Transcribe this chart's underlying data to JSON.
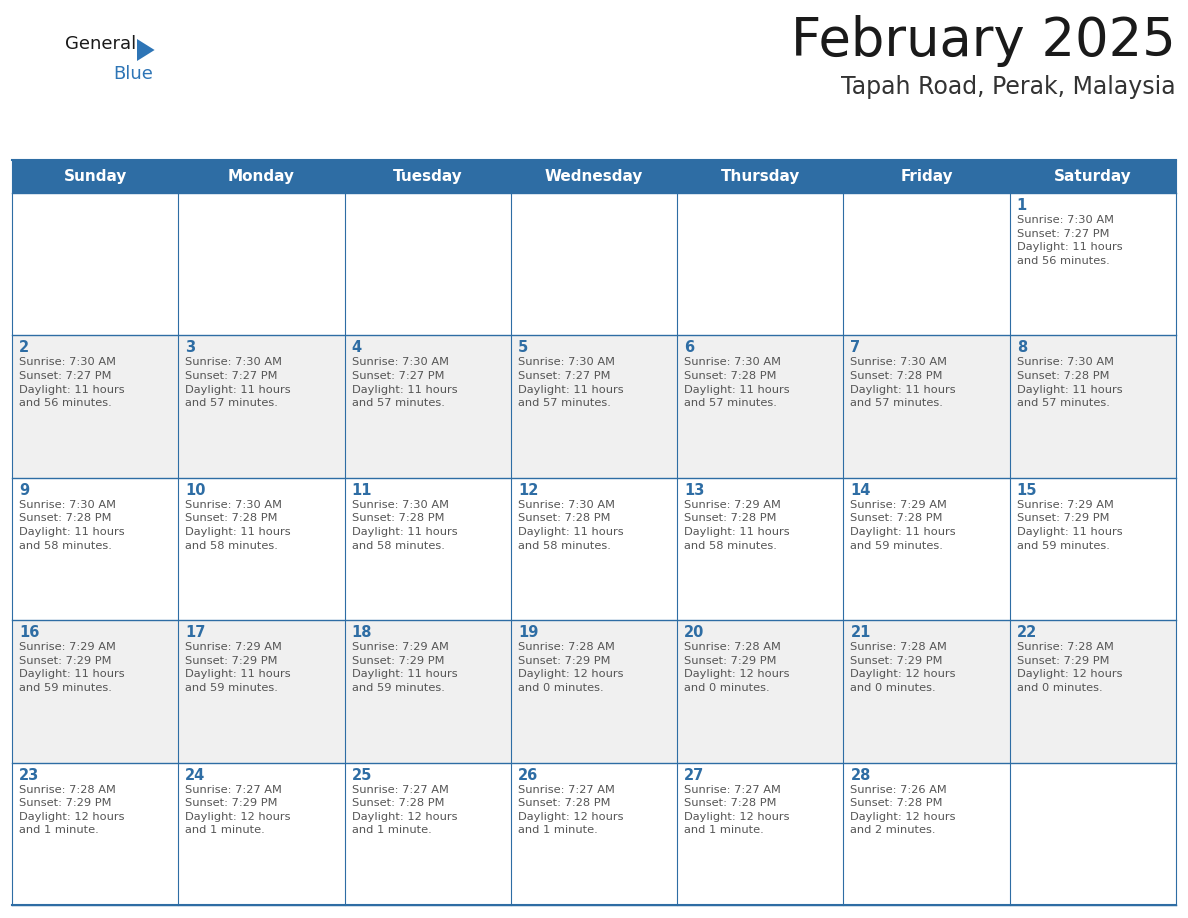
{
  "title": "February 2025",
  "subtitle": "Tapah Road, Perak, Malaysia",
  "header_bg": "#2E6DA4",
  "header_text": "#FFFFFF",
  "row_bg_odd": "#FFFFFF",
  "row_bg_even": "#F0F0F0",
  "day_number_color": "#2E6DA4",
  "info_text_color": "#555555",
  "border_color": "#2E6DA4",
  "border_color_light": "#AAAAAA",
  "days_of_week": [
    "Sunday",
    "Monday",
    "Tuesday",
    "Wednesday",
    "Thursday",
    "Friday",
    "Saturday"
  ],
  "weeks": [
    [
      {
        "day": null,
        "info": null
      },
      {
        "day": null,
        "info": null
      },
      {
        "day": null,
        "info": null
      },
      {
        "day": null,
        "info": null
      },
      {
        "day": null,
        "info": null
      },
      {
        "day": null,
        "info": null
      },
      {
        "day": "1",
        "info": "Sunrise: 7:30 AM\nSunset: 7:27 PM\nDaylight: 11 hours\nand 56 minutes."
      }
    ],
    [
      {
        "day": "2",
        "info": "Sunrise: 7:30 AM\nSunset: 7:27 PM\nDaylight: 11 hours\nand 56 minutes."
      },
      {
        "day": "3",
        "info": "Sunrise: 7:30 AM\nSunset: 7:27 PM\nDaylight: 11 hours\nand 57 minutes."
      },
      {
        "day": "4",
        "info": "Sunrise: 7:30 AM\nSunset: 7:27 PM\nDaylight: 11 hours\nand 57 minutes."
      },
      {
        "day": "5",
        "info": "Sunrise: 7:30 AM\nSunset: 7:27 PM\nDaylight: 11 hours\nand 57 minutes."
      },
      {
        "day": "6",
        "info": "Sunrise: 7:30 AM\nSunset: 7:28 PM\nDaylight: 11 hours\nand 57 minutes."
      },
      {
        "day": "7",
        "info": "Sunrise: 7:30 AM\nSunset: 7:28 PM\nDaylight: 11 hours\nand 57 minutes."
      },
      {
        "day": "8",
        "info": "Sunrise: 7:30 AM\nSunset: 7:28 PM\nDaylight: 11 hours\nand 57 minutes."
      }
    ],
    [
      {
        "day": "9",
        "info": "Sunrise: 7:30 AM\nSunset: 7:28 PM\nDaylight: 11 hours\nand 58 minutes."
      },
      {
        "day": "10",
        "info": "Sunrise: 7:30 AM\nSunset: 7:28 PM\nDaylight: 11 hours\nand 58 minutes."
      },
      {
        "day": "11",
        "info": "Sunrise: 7:30 AM\nSunset: 7:28 PM\nDaylight: 11 hours\nand 58 minutes."
      },
      {
        "day": "12",
        "info": "Sunrise: 7:30 AM\nSunset: 7:28 PM\nDaylight: 11 hours\nand 58 minutes."
      },
      {
        "day": "13",
        "info": "Sunrise: 7:29 AM\nSunset: 7:28 PM\nDaylight: 11 hours\nand 58 minutes."
      },
      {
        "day": "14",
        "info": "Sunrise: 7:29 AM\nSunset: 7:28 PM\nDaylight: 11 hours\nand 59 minutes."
      },
      {
        "day": "15",
        "info": "Sunrise: 7:29 AM\nSunset: 7:29 PM\nDaylight: 11 hours\nand 59 minutes."
      }
    ],
    [
      {
        "day": "16",
        "info": "Sunrise: 7:29 AM\nSunset: 7:29 PM\nDaylight: 11 hours\nand 59 minutes."
      },
      {
        "day": "17",
        "info": "Sunrise: 7:29 AM\nSunset: 7:29 PM\nDaylight: 11 hours\nand 59 minutes."
      },
      {
        "day": "18",
        "info": "Sunrise: 7:29 AM\nSunset: 7:29 PM\nDaylight: 11 hours\nand 59 minutes."
      },
      {
        "day": "19",
        "info": "Sunrise: 7:28 AM\nSunset: 7:29 PM\nDaylight: 12 hours\nand 0 minutes."
      },
      {
        "day": "20",
        "info": "Sunrise: 7:28 AM\nSunset: 7:29 PM\nDaylight: 12 hours\nand 0 minutes."
      },
      {
        "day": "21",
        "info": "Sunrise: 7:28 AM\nSunset: 7:29 PM\nDaylight: 12 hours\nand 0 minutes."
      },
      {
        "day": "22",
        "info": "Sunrise: 7:28 AM\nSunset: 7:29 PM\nDaylight: 12 hours\nand 0 minutes."
      }
    ],
    [
      {
        "day": "23",
        "info": "Sunrise: 7:28 AM\nSunset: 7:29 PM\nDaylight: 12 hours\nand 1 minute."
      },
      {
        "day": "24",
        "info": "Sunrise: 7:27 AM\nSunset: 7:29 PM\nDaylight: 12 hours\nand 1 minute."
      },
      {
        "day": "25",
        "info": "Sunrise: 7:27 AM\nSunset: 7:28 PM\nDaylight: 12 hours\nand 1 minute."
      },
      {
        "day": "26",
        "info": "Sunrise: 7:27 AM\nSunset: 7:28 PM\nDaylight: 12 hours\nand 1 minute."
      },
      {
        "day": "27",
        "info": "Sunrise: 7:27 AM\nSunset: 7:28 PM\nDaylight: 12 hours\nand 1 minute."
      },
      {
        "day": "28",
        "info": "Sunrise: 7:26 AM\nSunset: 7:28 PM\nDaylight: 12 hours\nand 2 minutes."
      },
      {
        "day": null,
        "info": null
      }
    ]
  ],
  "logo_text1": "General",
  "logo_text2": "Blue",
  "logo_triangle_color": "#2E75B6",
  "title_fontsize": 38,
  "subtitle_fontsize": 17,
  "header_fontsize": 11,
  "day_number_fontsize": 10.5,
  "info_fontsize": 8.2
}
